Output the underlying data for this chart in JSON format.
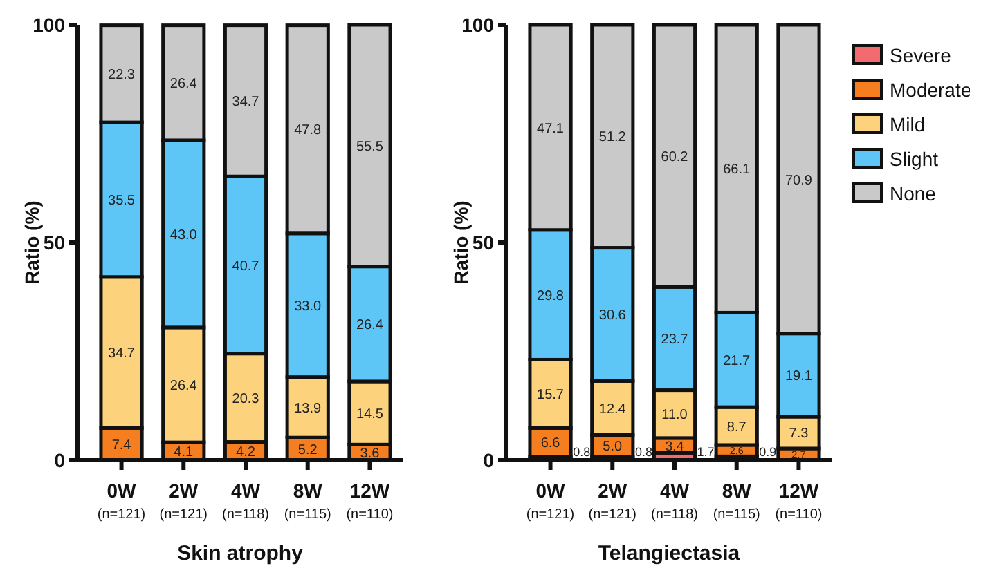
{
  "chart_data": [
    {
      "type": "bar",
      "stacked": true,
      "xlabel": "Skin atrophy",
      "ylabel": "Ratio (%)",
      "categories": [
        "0W\n(n=121)",
        "2W\n(n=121)",
        "4W\n(n=118)",
        "8W\n(n=115)",
        "12W\n(n=110)"
      ],
      "ylim": [
        0,
        100
      ],
      "yticks": [
        0,
        50,
        100
      ],
      "legend": false,
      "grid": false,
      "series": [
        {
          "color": "#f57e20",
          "values": [
            7.4,
            4.1,
            4.2,
            5.2,
            3.6
          ],
          "value_labels": [
            "7.4",
            "4.1",
            "4.2",
            "5.2",
            "3.6"
          ]
        },
        {
          "color": "#fcd27c",
          "values": [
            34.7,
            26.4,
            20.3,
            13.9,
            14.5
          ],
          "value_labels": [
            "34.7",
            "26.4",
            "20.3",
            "13.9",
            "14.5"
          ]
        },
        {
          "color": "#5ec6f6",
          "values": [
            35.5,
            43.0,
            40.7,
            33.0,
            26.4
          ],
          "value_labels": [
            "35.5",
            "43.0",
            "40.7",
            "33.0",
            "26.4"
          ]
        },
        {
          "color": "#c9c9c9",
          "values": [
            22.3,
            26.4,
            34.7,
            47.8,
            55.5
          ],
          "value_labels": [
            "22.3",
            "26.4",
            "34.7",
            "47.8",
            "55.5"
          ]
        }
      ]
    },
    {
      "type": "bar",
      "stacked": true,
      "xlabel": "Telangiectasia",
      "ylabel": "Ratio (%)",
      "categories": [
        "0W\n(n=121)",
        "2W\n(n=121)",
        "4W\n(n=118)",
        "8W\n(n=115)",
        "12W\n(n=110)"
      ],
      "ylim": [
        0,
        100
      ],
      "yticks": [
        0,
        50,
        100
      ],
      "legend": "right",
      "grid": false,
      "series": [
        {
          "name": "Severe",
          "color": "#f26b6f",
          "values": [
            0.8,
            0.8,
            1.7,
            0.9,
            null
          ],
          "value_labels": [
            "0.8",
            "0.8",
            "1.7",
            "0.9",
            null
          ]
        },
        {
          "name": "Moderate",
          "color": "#f57e20",
          "values": [
            6.6,
            5.0,
            3.4,
            2.6,
            2.7
          ],
          "value_labels": [
            "6.6",
            "5.0",
            "3.4",
            "2.6",
            "2.7"
          ]
        },
        {
          "name": "Mild",
          "color": "#fcd27c",
          "values": [
            15.7,
            12.4,
            11.0,
            8.7,
            7.3
          ],
          "value_labels": [
            "15.7",
            "12.4",
            "11.0",
            "8.7",
            "7.3"
          ]
        },
        {
          "name": "Slight",
          "color": "#5ec6f6",
          "values": [
            29.8,
            30.6,
            23.7,
            21.7,
            19.1
          ],
          "value_labels": [
            "29.8",
            "30.6",
            "23.7",
            "21.7",
            "19.1"
          ]
        },
        {
          "name": "None",
          "color": "#c9c9c9",
          "values": [
            47.1,
            51.2,
            60.2,
            66.1,
            70.9
          ],
          "value_labels": [
            "47.1",
            "51.2",
            "60.2",
            "66.1",
            "70.9"
          ]
        }
      ]
    }
  ]
}
